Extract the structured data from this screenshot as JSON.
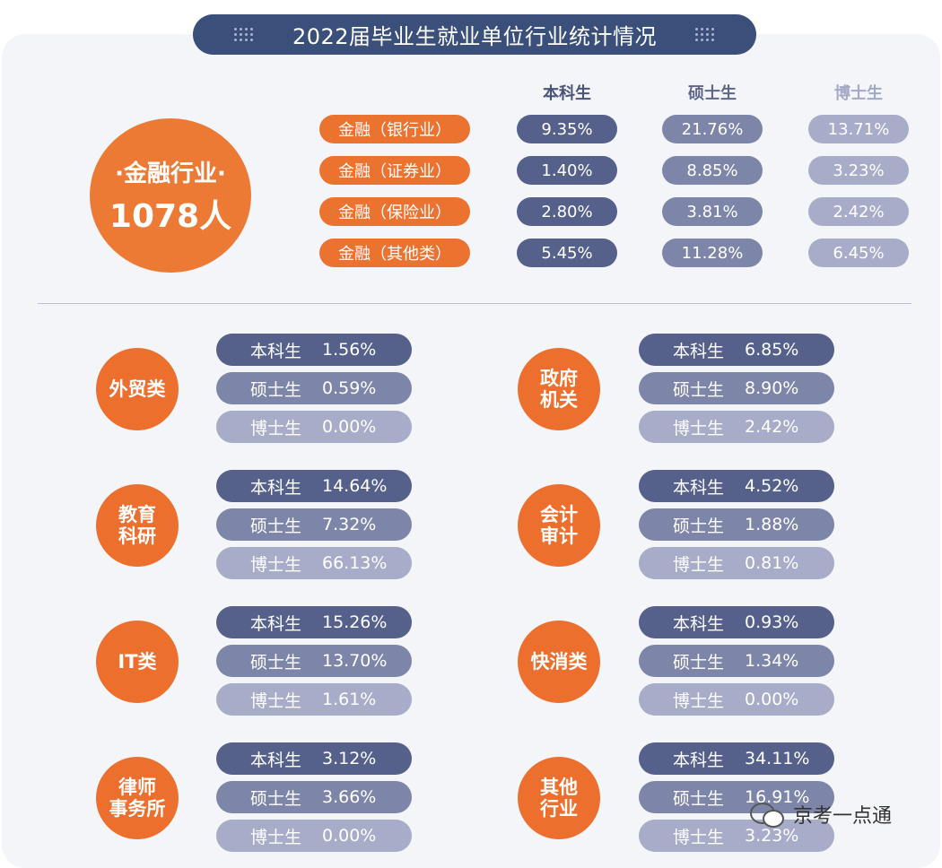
{
  "title": "2022届毕业生就业单位行业统计情况",
  "columns": [
    "本科生",
    "硕士生",
    "博士生"
  ],
  "colors": {
    "orange": "#ec7230",
    "bachelor": "#55618a",
    "master": "#7d86a8",
    "doctor": "#a7acc8",
    "title_bg": "#3a4f7a"
  },
  "finance": {
    "name_line": "·金融行业·",
    "count_line": "1078人",
    "rows": [
      {
        "name": "金融（银行业）",
        "values": [
          "9.35%",
          "21.76%",
          "13.71%"
        ]
      },
      {
        "name": "金融（证券业）",
        "values": [
          "1.40%",
          "8.85%",
          "3.23%"
        ]
      },
      {
        "name": "金融（保险业）",
        "values": [
          "2.80%",
          "3.81%",
          "2.42%"
        ]
      },
      {
        "name": "金融（其他类）",
        "values": [
          "5.45%",
          "11.28%",
          "6.45%"
        ]
      }
    ]
  },
  "industries": [
    {
      "name": "外贸类",
      "values": [
        "1.56%",
        "0.59%",
        "0.00%"
      ]
    },
    {
      "name": "政府\n机关",
      "values": [
        "6.85%",
        "8.90%",
        "2.42%"
      ]
    },
    {
      "name": "教育\n科研",
      "values": [
        "14.64%",
        "7.32%",
        "66.13%"
      ]
    },
    {
      "name": "会计\n审计",
      "values": [
        "4.52%",
        "1.88%",
        "0.81%"
      ]
    },
    {
      "name": "IT类",
      "values": [
        "15.26%",
        "13.70%",
        "1.61%"
      ]
    },
    {
      "name": "快消类",
      "values": [
        "0.93%",
        "1.34%",
        "0.00%"
      ]
    },
    {
      "name": "律师\n事务所",
      "values": [
        "3.12%",
        "3.66%",
        "0.00%"
      ]
    },
    {
      "name": "其他\n行业",
      "values": [
        "34.11%",
        "16.91%",
        "3.23%"
      ]
    }
  ],
  "chart_data": {
    "type": "table",
    "title": "2022届毕业生就业单位行业统计情况",
    "columns": [
      "本科生",
      "硕士生",
      "博士生"
    ],
    "rows": [
      {
        "category": "金融（银行业）",
        "values": [
          9.35,
          21.76,
          13.71
        ]
      },
      {
        "category": "金融（证券业）",
        "values": [
          1.4,
          8.85,
          3.23
        ]
      },
      {
        "category": "金融（保险业）",
        "values": [
          2.8,
          3.81,
          2.42
        ]
      },
      {
        "category": "金融（其他类）",
        "values": [
          5.45,
          11.28,
          6.45
        ]
      },
      {
        "category": "外贸类",
        "values": [
          1.56,
          0.59,
          0.0
        ]
      },
      {
        "category": "政府机关",
        "values": [
          6.85,
          8.9,
          2.42
        ]
      },
      {
        "category": "教育科研",
        "values": [
          14.64,
          7.32,
          66.13
        ]
      },
      {
        "category": "会计审计",
        "values": [
          4.52,
          1.88,
          0.81
        ]
      },
      {
        "category": "IT类",
        "values": [
          15.26,
          13.7,
          1.61
        ]
      },
      {
        "category": "快消类",
        "values": [
          0.93,
          1.34,
          0.0
        ]
      },
      {
        "category": "律师事务所",
        "values": [
          3.12,
          3.66,
          0.0
        ]
      },
      {
        "category": "其他行业",
        "values": [
          34.11,
          16.91,
          3.23
        ]
      }
    ]
  },
  "watermark": "京考一点通",
  "watermark_icon": "wechat-icon"
}
